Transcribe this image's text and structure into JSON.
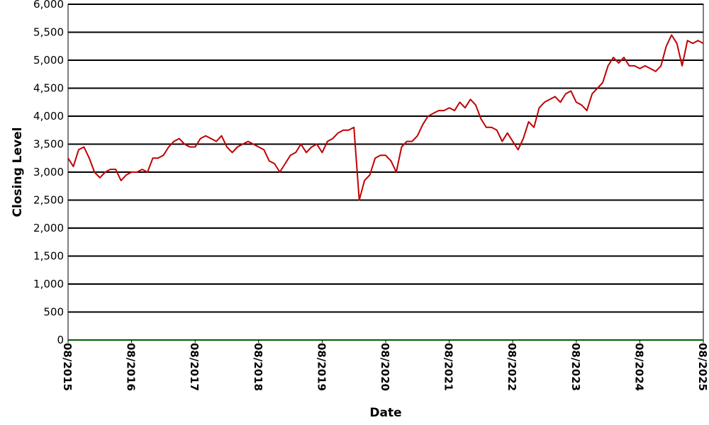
{
  "chart_data": {
    "type": "line",
    "ylabel": "Closing Level",
    "xlabel": "Date",
    "x": [
      "08/2015",
      "09/2015",
      "10/2015",
      "11/2015",
      "12/2015",
      "01/2016",
      "02/2016",
      "03/2016",
      "04/2016",
      "05/2016",
      "06/2016",
      "07/2016",
      "08/2016",
      "09/2016",
      "10/2016",
      "11/2016",
      "12/2016",
      "01/2017",
      "02/2017",
      "03/2017",
      "04/2017",
      "05/2017",
      "06/2017",
      "07/2017",
      "08/2017",
      "09/2017",
      "10/2017",
      "11/2017",
      "12/2017",
      "01/2018",
      "02/2018",
      "03/2018",
      "04/2018",
      "05/2018",
      "06/2018",
      "07/2018",
      "08/2018",
      "09/2018",
      "10/2018",
      "11/2018",
      "12/2018",
      "01/2019",
      "02/2019",
      "03/2019",
      "04/2019",
      "05/2019",
      "06/2019",
      "07/2019",
      "08/2019",
      "09/2019",
      "10/2019",
      "11/2019",
      "12/2019",
      "01/2020",
      "02/2020",
      "03/2020",
      "04/2020",
      "05/2020",
      "06/2020",
      "07/2020",
      "08/2020",
      "09/2020",
      "10/2020",
      "11/2020",
      "12/2020",
      "01/2021",
      "02/2021",
      "03/2021",
      "04/2021",
      "05/2021",
      "06/2021",
      "07/2021",
      "08/2021",
      "09/2021",
      "10/2021",
      "11/2021",
      "12/2021",
      "01/2022",
      "02/2022",
      "03/2022",
      "04/2022",
      "05/2022",
      "06/2022",
      "07/2022",
      "08/2022",
      "09/2022",
      "10/2022",
      "11/2022",
      "12/2022",
      "01/2023",
      "02/2023",
      "03/2023",
      "04/2023",
      "05/2023",
      "06/2023",
      "07/2023",
      "08/2023",
      "09/2023",
      "10/2023",
      "11/2023",
      "12/2023",
      "01/2024",
      "02/2024",
      "03/2024",
      "04/2024",
      "05/2024",
      "06/2024",
      "07/2024",
      "08/2024",
      "09/2024",
      "10/2024",
      "11/2024",
      "12/2024",
      "01/2025",
      "02/2025",
      "03/2025",
      "04/2025",
      "05/2025",
      "06/2025",
      "07/2025",
      "08/2025"
    ],
    "series": [
      {
        "color": "#c00000",
        "values": [
          3250,
          3100,
          3400,
          3450,
          3250,
          3000,
          2900,
          3000,
          3050,
          3050,
          2850,
          2950,
          3000,
          3000,
          3050,
          3000,
          3250,
          3250,
          3300,
          3450,
          3550,
          3600,
          3500,
          3450,
          3450,
          3600,
          3650,
          3600,
          3550,
          3650,
          3450,
          3350,
          3450,
          3500,
          3550,
          3500,
          3450,
          3400,
          3200,
          3150,
          3000,
          3150,
          3300,
          3350,
          3500,
          3350,
          3450,
          3500,
          3350,
          3550,
          3600,
          3700,
          3750,
          3750,
          3800,
          2500,
          2850,
          2950,
          3250,
          3300,
          3300,
          3200,
          3000,
          3450,
          3550,
          3550,
          3650,
          3850,
          4000,
          4050,
          4100,
          4100,
          4150,
          4100,
          4250,
          4150,
          4300,
          4200,
          3950,
          3800,
          3800,
          3750,
          3550,
          3700,
          3550,
          3400,
          3600,
          3900,
          3800,
          4150,
          4250,
          4300,
          4350,
          4250,
          4400,
          4450,
          4250,
          4200,
          4100,
          4400,
          4500,
          4600,
          4900,
          5050,
          4950,
          5050,
          4900,
          4900,
          4850,
          4900,
          4850,
          4800,
          4900,
          5250,
          5450,
          5300,
          4900,
          5350,
          5300,
          5350,
          5300
        ]
      }
    ],
    "xlim": [
      "08/2015",
      "08/2025"
    ],
    "xticks": [
      "08/2015",
      "08/2016",
      "08/2017",
      "08/2018",
      "08/2019",
      "08/2020",
      "08/2021",
      "08/2022",
      "08/2023",
      "08/2024",
      "08/2025"
    ],
    "ylim": [
      0,
      6000
    ],
    "yticks": [
      0,
      500,
      {
        "value": 1000,
        "label": "1,000"
      },
      {
        "value": 1500,
        "label": "1,500"
      },
      {
        "value": 2000,
        "label": "2,000"
      },
      {
        "value": 2500,
        "label": "2,500"
      },
      {
        "value": 3000,
        "label": "3,000"
      },
      {
        "value": 3500,
        "label": "3,500"
      },
      {
        "value": 4000,
        "label": "4,000"
      },
      {
        "value": 4500,
        "label": "4,500"
      },
      {
        "value": 5000,
        "label": "5,000"
      },
      {
        "value": 5500,
        "label": "5,500"
      },
      {
        "value": 6000,
        "label": "6,000"
      }
    ],
    "grid": true
  }
}
